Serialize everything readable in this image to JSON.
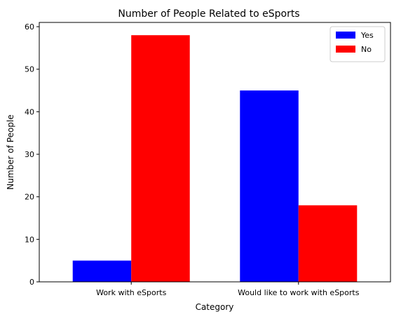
{
  "chart_data": {
    "type": "bar",
    "title": "Number of People Related to eSports",
    "xlabel": "Category",
    "ylabel": "Number of People",
    "categories": [
      "Work with eSports",
      "Would like to work with eSports"
    ],
    "series": [
      {
        "name": "Yes",
        "values": [
          5,
          45
        ],
        "color": "#0000ff"
      },
      {
        "name": "No",
        "values": [
          58,
          18
        ],
        "color": "#ff0000"
      }
    ],
    "ylim": [
      0,
      61
    ],
    "yticks": [
      0,
      10,
      20,
      30,
      40,
      50,
      60
    ],
    "legend_position": "top-right",
    "grid": false
  }
}
